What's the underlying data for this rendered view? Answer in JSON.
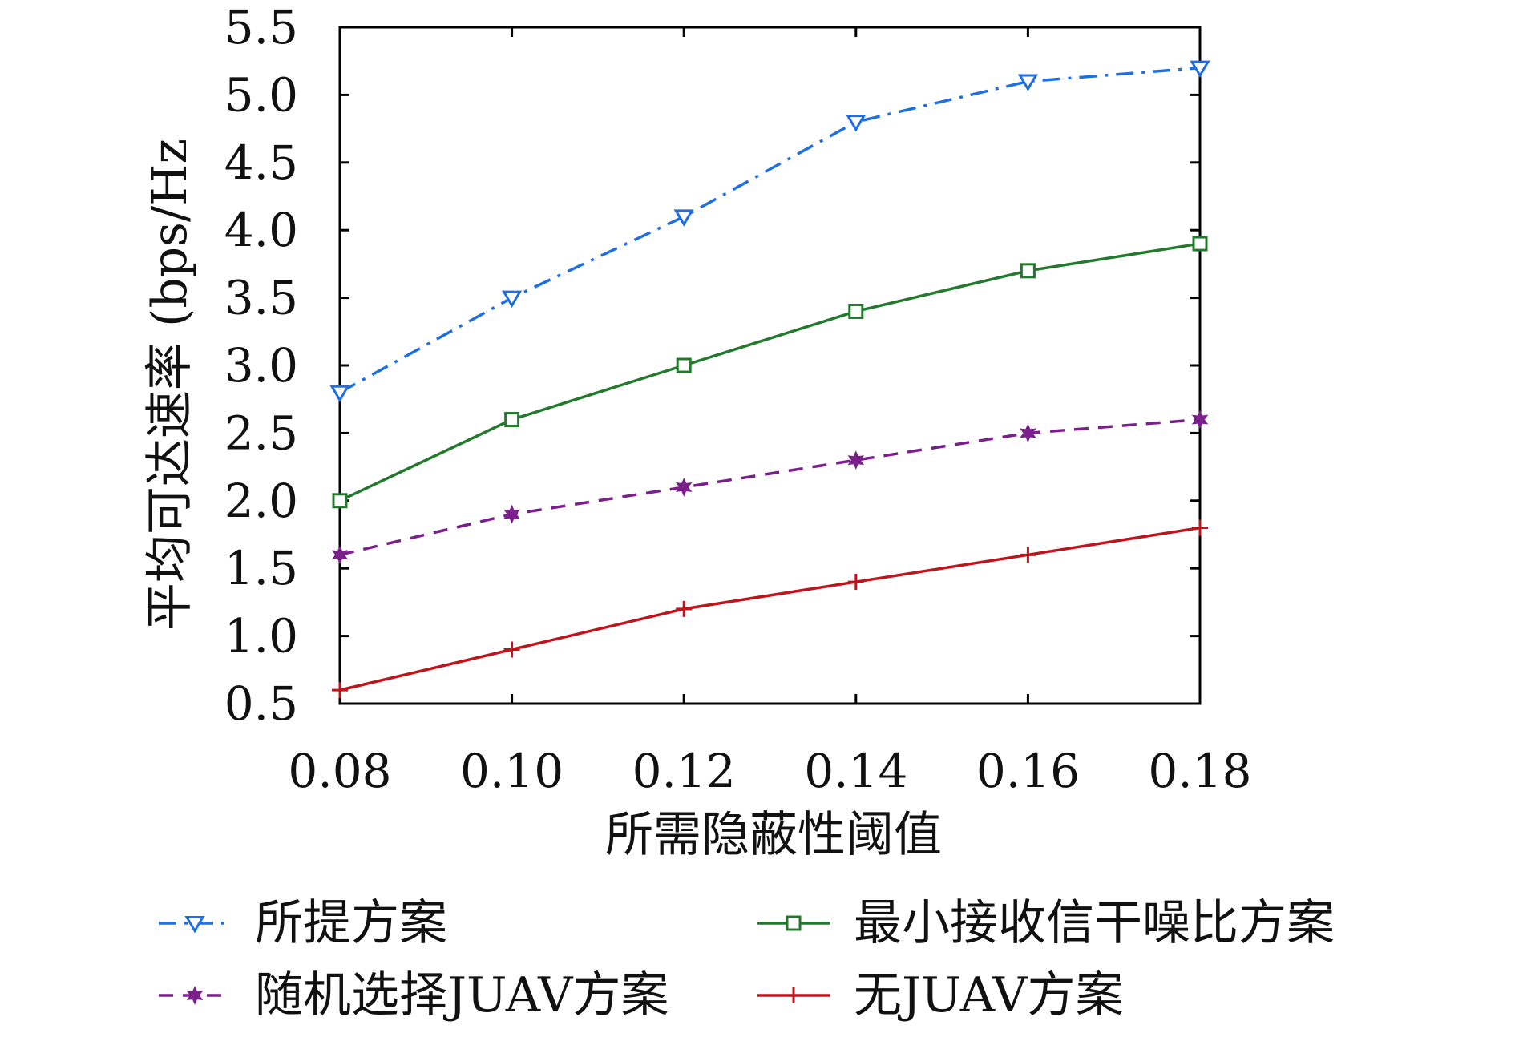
{
  "chart_data": {
    "type": "line",
    "xlabel": "所需隐蔽性阈值",
    "ylabel": "平均可达速率 (bps/Hz",
    "x": [
      0.08,
      0.1,
      0.12,
      0.14,
      0.16,
      0.18
    ],
    "x_tick_labels": [
      "0.08",
      "0.10",
      "0.12",
      "0.14",
      "0.16",
      "0.18"
    ],
    "y_ticks": [
      0.5,
      1.0,
      1.5,
      2.0,
      2.5,
      3.0,
      3.5,
      4.0,
      4.5,
      5.0,
      5.5
    ],
    "y_tick_labels": [
      "0.5",
      "1.0",
      "1.5",
      "2.0",
      "2.5",
      "3.0",
      "3.5",
      "4.0",
      "4.5",
      "5.0",
      "5.5"
    ],
    "xlim": [
      0.08,
      0.18
    ],
    "ylim": [
      0.5,
      5.5
    ],
    "grid": false,
    "legend_position": "bottom",
    "series": [
      {
        "name": "所提方案",
        "values": [
          2.8,
          3.5,
          4.1,
          4.8,
          5.1,
          5.2
        ],
        "color": "#1f6fe0",
        "marker": "triangle-down",
        "line_style": "dash-dot"
      },
      {
        "name": "最小接收信干噪比方案",
        "values": [
          2.0,
          2.6,
          3.0,
          3.4,
          3.7,
          3.9
        ],
        "color": "#237a2e",
        "marker": "square",
        "line_style": "solid"
      },
      {
        "name": "随机选择JUAV方案",
        "values": [
          1.6,
          1.9,
          2.1,
          2.3,
          2.5,
          2.6
        ],
        "color": "#7a1f8c",
        "marker": "star",
        "line_style": "dashed"
      },
      {
        "name": "无JUAV方案",
        "values": [
          0.6,
          0.9,
          1.2,
          1.4,
          1.6,
          1.8
        ],
        "color": "#c0141c",
        "marker": "plus",
        "line_style": "solid"
      }
    ]
  }
}
